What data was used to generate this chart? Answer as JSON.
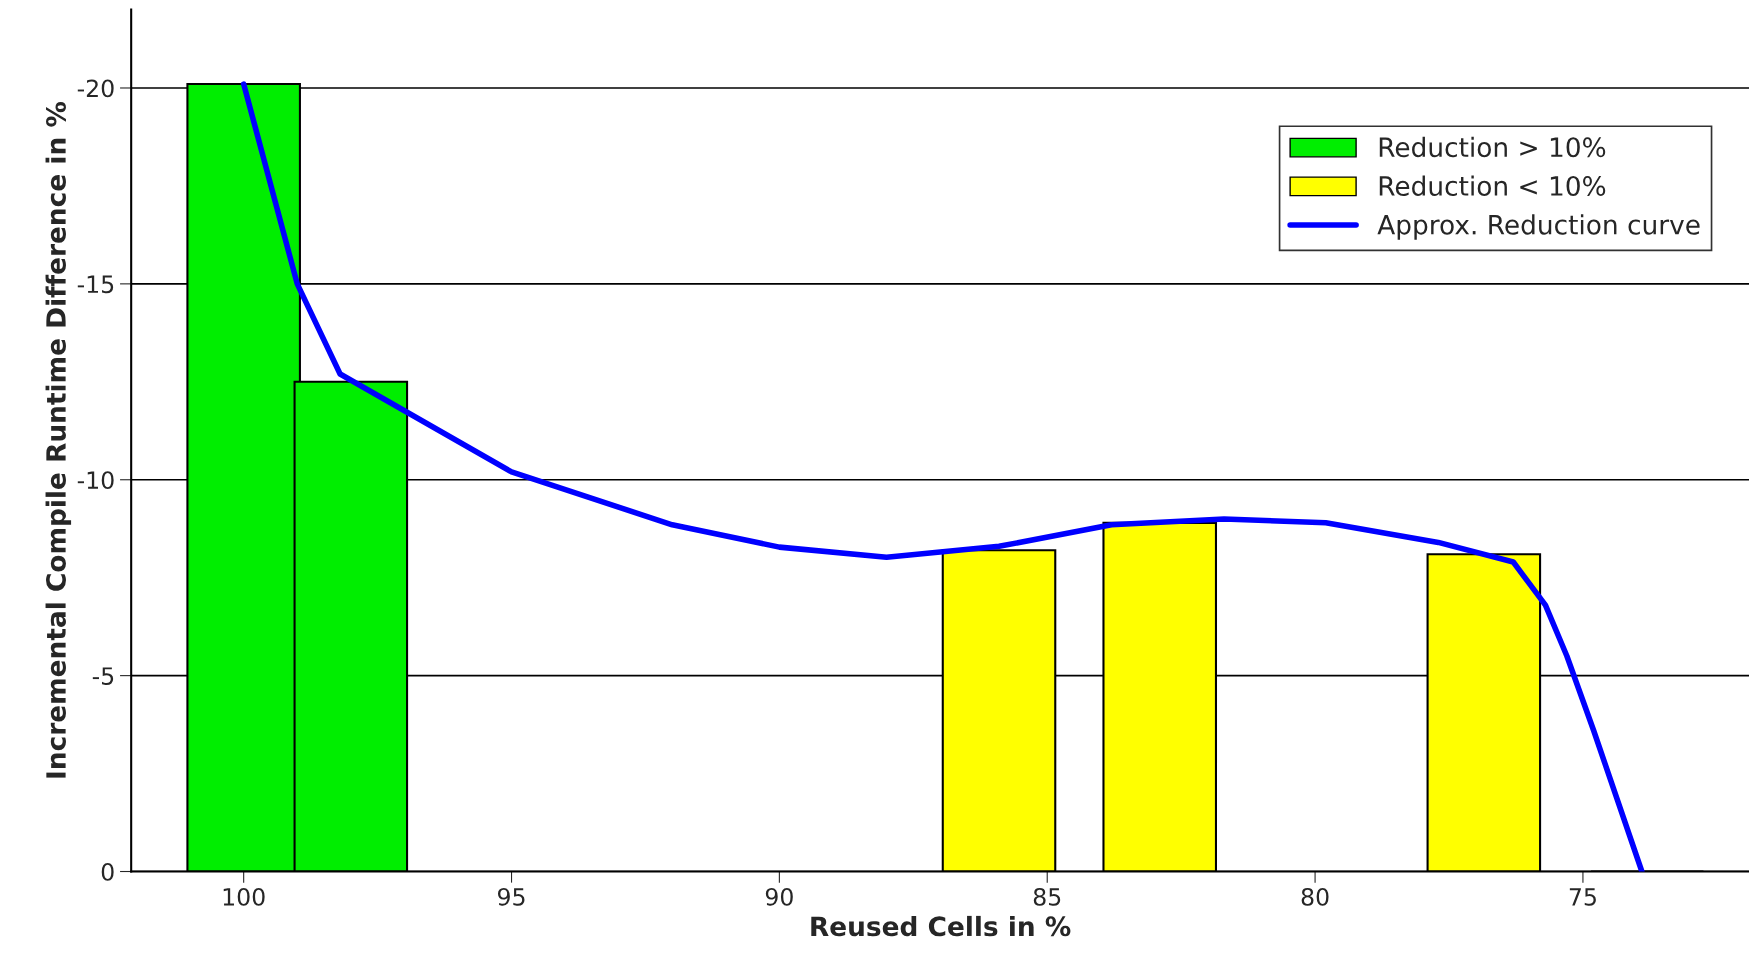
{
  "chart_data": {
    "type": "bar",
    "xlabel": "Reused Cells in %",
    "ylabel": "Incremental Compile Runtime Difference in %",
    "series": [
      {
        "name": "Reduction > 10%",
        "color": "#00ee00",
        "x": [
          100,
          98
        ],
        "values": [
          -20.1,
          -12.5
        ]
      },
      {
        "name": "Reduction < 10%",
        "color": "#ffff00",
        "x": [
          85.9,
          82.9,
          76.85,
          73.8
        ],
        "values": [
          -8.2,
          -8.9,
          -8.1,
          0
        ]
      },
      {
        "name": "Approx. Reduction curve",
        "type": "line",
        "color": "#0000ff",
        "x": [
          100,
          99,
          98.2,
          95,
          92,
          90,
          88,
          85.9,
          83.8,
          81.7,
          79.8,
          77.7,
          76.3,
          75.7,
          75.3,
          74.8,
          73.9
        ],
        "values": [
          -20.1,
          -15,
          -12.7,
          -10.2,
          -8.85,
          -8.28,
          -8.02,
          -8.3,
          -8.85,
          -9.0,
          -8.9,
          -8.4,
          -7.9,
          -6.8,
          -5.5,
          -3.6,
          0
        ]
      }
    ],
    "xlim": [
      102.1,
      71.9
    ],
    "xticks": [
      100,
      95,
      90,
      85,
      80,
      75
    ],
    "ylim": [
      0,
      -22
    ],
    "yticks": [
      {
        "value": 0,
        "label": "0"
      },
      {
        "value": -5,
        "label": "-5"
      },
      {
        "value": -10,
        "label": "-10"
      },
      {
        "value": -15,
        "label": "-15"
      },
      {
        "value": -20,
        "label": "-20"
      }
    ],
    "grid": "y",
    "legend": "top right",
    "marker": "none",
    "line_style": "solid"
  }
}
